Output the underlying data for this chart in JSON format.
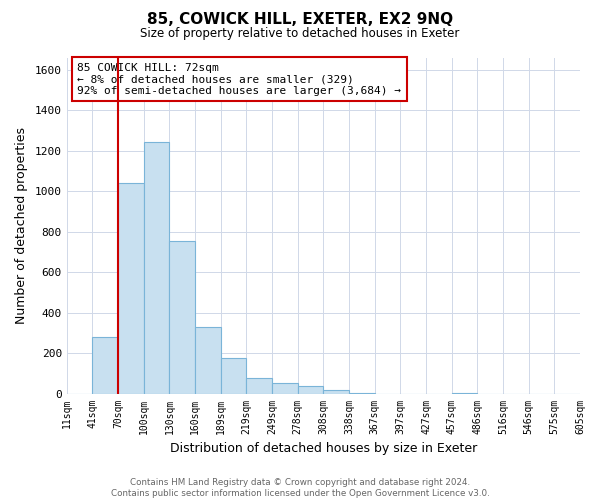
{
  "title": "85, COWICK HILL, EXETER, EX2 9NQ",
  "subtitle": "Size of property relative to detached houses in Exeter",
  "xlabel": "Distribution of detached houses by size in Exeter",
  "ylabel": "Number of detached properties",
  "bar_values": [
    0,
    280,
    1040,
    1245,
    755,
    330,
    175,
    75,
    50,
    35,
    20,
    5,
    0,
    0,
    0,
    5,
    0,
    0,
    0,
    0
  ],
  "bin_labels": [
    "11sqm",
    "41sqm",
    "70sqm",
    "100sqm",
    "130sqm",
    "160sqm",
    "189sqm",
    "219sqm",
    "249sqm",
    "278sqm",
    "308sqm",
    "338sqm",
    "367sqm",
    "397sqm",
    "427sqm",
    "457sqm",
    "486sqm",
    "516sqm",
    "546sqm",
    "575sqm",
    "605sqm"
  ],
  "bar_color": "#c8e0f0",
  "bar_edge_color": "#7ab4d8",
  "reference_line_color": "#cc0000",
  "ylim": [
    0,
    1660
  ],
  "yticks": [
    0,
    200,
    400,
    600,
    800,
    1000,
    1200,
    1400,
    1600
  ],
  "annotation_title": "85 COWICK HILL: 72sqm",
  "annotation_line1": "← 8% of detached houses are smaller (329)",
  "annotation_line2": "92% of semi-detached houses are larger (3,684) →",
  "annotation_box_color": "#ffffff",
  "annotation_box_edge": "#cc0000",
  "footer_line1": "Contains HM Land Registry data © Crown copyright and database right 2024.",
  "footer_line2": "Contains public sector information licensed under the Open Government Licence v3.0.",
  "background_color": "#ffffff",
  "grid_color": "#d0d8e8",
  "ref_bar_index": 2
}
